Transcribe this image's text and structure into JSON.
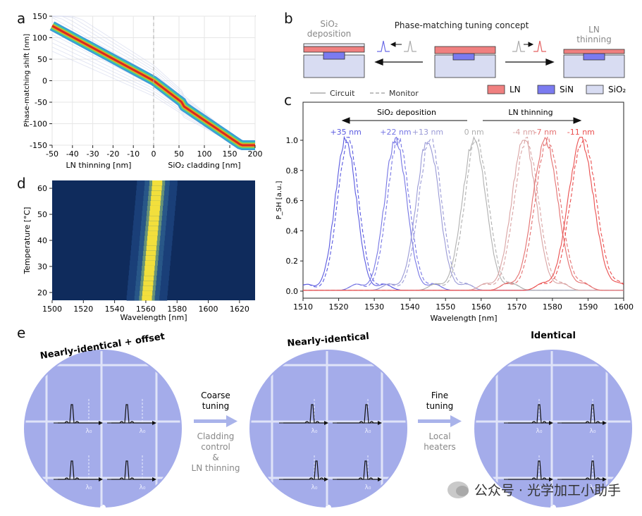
{
  "panels": {
    "a": {
      "letter": "a",
      "ylabel": "Phase-matching shift [nm]",
      "xlabel_left": "LN thinning [nm]",
      "xlabel_right": "SiO₂ cladding [nm]",
      "xticks": [
        "-50",
        "-40",
        "-30",
        "-20",
        "-10",
        "0",
        "50",
        "100",
        "150",
        "200"
      ],
      "yticks": [
        "150",
        "100",
        "50",
        "0",
        "-50",
        "-100",
        "-150"
      ]
    },
    "b": {
      "letter": "b",
      "title": "Phase-matching tuning concept",
      "left_label_line1": "SiO₂",
      "left_label_line2": "deposition",
      "right_label_line1": "LN",
      "right_label_line2": "thinning",
      "legend": [
        {
          "label": "LN",
          "color": "#f08080"
        },
        {
          "label": "SiN",
          "color": "#7b7bf0"
        },
        {
          "label": "SiO₂",
          "color": "#d8dcf2"
        }
      ]
    },
    "c": {
      "letter": "c",
      "legend_circuit": "Circuit",
      "legend_monitor": "Monitor",
      "arrow_left_label": "SiO₂ deposition",
      "arrow_right_label": "LN thinning",
      "ylabel": "P_SH [a.u.]",
      "xlabel": "Wavelength [nm]",
      "xticks": [
        "1510",
        "1520",
        "1530",
        "1540",
        "1550",
        "1560",
        "1570",
        "1580",
        "1590",
        "1600"
      ],
      "yticks": [
        "0.0",
        "0.2",
        "0.4",
        "0.6",
        "0.8",
        "1.0"
      ]
    },
    "d": {
      "letter": "d",
      "ylabel": "Temperature [°C]",
      "xlabel": "Wavelength [nm]",
      "xticks": [
        "1500",
        "1520",
        "1540",
        "1560",
        "1580",
        "1600",
        "1620"
      ],
      "yticks": [
        "60",
        "50",
        "40",
        "30",
        "20"
      ]
    },
    "e": {
      "letter": "e",
      "wafer1_title": "Nearly-identical + offset",
      "wafer2_title": "Nearly-identical",
      "wafer3_title": "Identical",
      "step1_title_line1": "Coarse",
      "step1_title_line2": "tuning",
      "step1_desc_line1": "Cladding",
      "step1_desc_line2": "control",
      "step1_desc_line3": "&",
      "step1_desc_line4": "LN thinning",
      "step2_title_line1": "Fine",
      "step2_title_line2": "tuning",
      "step2_desc_line1": "Local",
      "step2_desc_line2": "heaters",
      "lambda_label": "λ₀"
    }
  },
  "chart_data": [
    {
      "type": "line",
      "panel": "a",
      "ylabel": "Phase-matching shift [nm]",
      "xlabel": "LN thinning [nm] | SiO₂ cladding [nm]",
      "x": [
        -50,
        -25,
        0,
        50,
        100,
        150,
        200
      ],
      "values": [
        130,
        65,
        0,
        -50,
        -100,
        -140,
        -160
      ],
      "ylim": [
        -150,
        150
      ],
      "grid": true
    },
    {
      "type": "line",
      "panel": "c",
      "xlabel": "Wavelength [nm]",
      "ylabel": "P_SH [a.u.]",
      "xlim": [
        1510,
        1600
      ],
      "ylim": [
        0,
        1.0
      ],
      "series": [
        {
          "name": "+35 nm",
          "center": 1522,
          "color": "#5a5ae0"
        },
        {
          "name": "+22 nm",
          "center": 1536,
          "color": "#7676e4"
        },
        {
          "name": "+13 nm",
          "center": 1545,
          "color": "#9a9ad6"
        },
        {
          "name": "0 nm",
          "center": 1558,
          "color": "#b0b0b0"
        },
        {
          "name": "-4 nm",
          "center": 1572,
          "color": "#d9a3a3"
        },
        {
          "name": "-7 nm",
          "center": 1578,
          "color": "#e47070"
        },
        {
          "name": "-11 nm",
          "center": 1588,
          "color": "#ea4e4e"
        }
      ]
    },
    {
      "type": "heatmap",
      "panel": "d",
      "xlabel": "Wavelength [nm]",
      "ylabel": "Temperature [°C]",
      "xlim": [
        1500,
        1630
      ],
      "ylim": [
        17,
        63
      ],
      "peak": [
        {
          "temperature": 20,
          "wavelength": 1561
        },
        {
          "temperature": 60,
          "wavelength": 1567
        }
      ]
    }
  ],
  "watermark": "公众号 · 光学加工小助手"
}
